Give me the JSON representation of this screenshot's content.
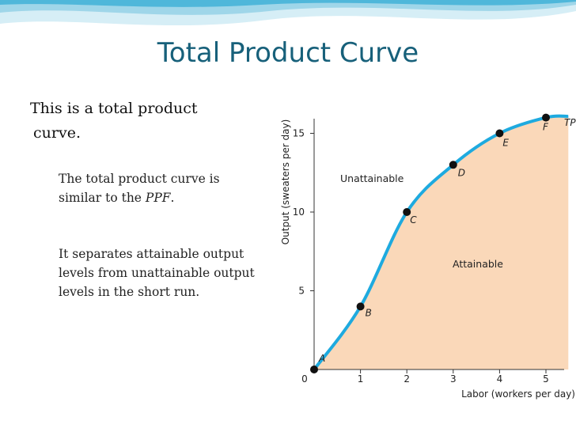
{
  "slide": {
    "title": "Total Product Curve",
    "line1a": "This is a total product",
    "line1b": "curve.",
    "sub1_a": "The total product curve is",
    "sub1_b": "similar to the ",
    "sub1_em": "PPF",
    "sub1_c": ".",
    "sub2": "It separates attainable output levels from unattainable output levels in the short run."
  },
  "colors": {
    "title": "#17607a",
    "curve": "#1eaadf",
    "attainable_fill": "#fad8b9",
    "axis": "#333333",
    "wave_light": "#cfeaf3",
    "wave_mid": "#8fd0e6"
  },
  "chart_data": {
    "type": "line",
    "xlabel": "Labor (workers per day)",
    "ylabel": "Output (sweaters per day)",
    "xlim": [
      0,
      5.5
    ],
    "ylim": [
      0,
      16
    ],
    "x_ticks": [
      0,
      1,
      2,
      3,
      4,
      5
    ],
    "y_ticks": [
      0,
      5,
      10,
      15
    ],
    "series": [
      {
        "name": "TP",
        "points": [
          {
            "label": "A",
            "x": 0,
            "y": 0
          },
          {
            "label": "B",
            "x": 1,
            "y": 4
          },
          {
            "label": "C",
            "x": 2,
            "y": 10
          },
          {
            "label": "D",
            "x": 3,
            "y": 13
          },
          {
            "label": "E",
            "x": 4,
            "y": 15
          },
          {
            "label": "F",
            "x": 5,
            "y": 16
          }
        ]
      }
    ],
    "regions": [
      "Unattainable",
      "Attainable"
    ]
  }
}
